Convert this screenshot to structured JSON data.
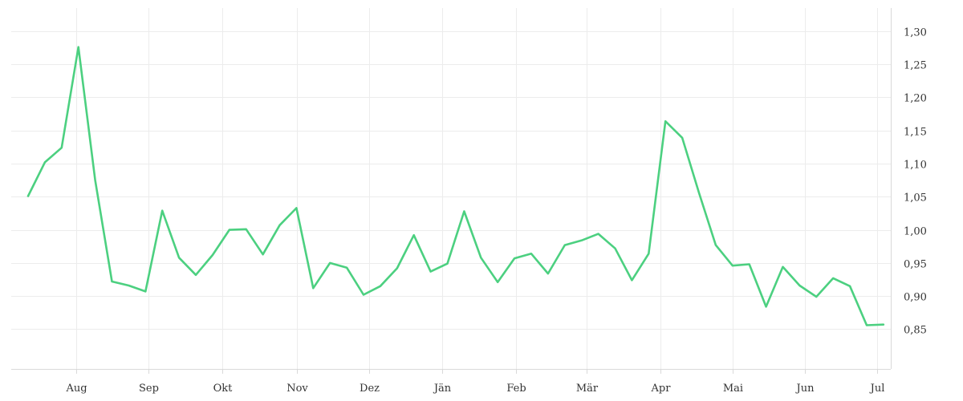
{
  "chart_data": {
    "type": "line",
    "title": "",
    "xlabel": "",
    "ylabel": "",
    "grid": true,
    "legend": "none",
    "line_color": "#4cd080",
    "ylim": [
      0.79,
      1.335
    ],
    "yticks": [
      {
        "value": 1.3,
        "label": "1,30"
      },
      {
        "value": 1.25,
        "label": "1,25"
      },
      {
        "value": 1.2,
        "label": "1,20"
      },
      {
        "value": 1.15,
        "label": "1,15"
      },
      {
        "value": 1.1,
        "label": "1,10"
      },
      {
        "value": 1.05,
        "label": "1,05"
      },
      {
        "value": 1.0,
        "label": "1,00"
      },
      {
        "value": 0.95,
        "label": "0,95"
      },
      {
        "value": 0.9,
        "label": "0,90"
      },
      {
        "value": 0.85,
        "label": "0,85"
      }
    ],
    "xticks": [
      {
        "label": "Aug",
        "index": 2.85
      },
      {
        "label": "Sep",
        "index": 7.2
      },
      {
        "label": "Okt",
        "index": 11.6
      },
      {
        "label": "Nov",
        "index": 16.05
      },
      {
        "label": "Dez",
        "index": 20.35
      },
      {
        "label": "Jän",
        "index": 24.7
      },
      {
        "label": "Feb",
        "index": 29.1
      },
      {
        "label": "Mär",
        "index": 33.3
      },
      {
        "label": "Apr",
        "index": 37.7
      },
      {
        "label": "Mai",
        "index": 42.0
      },
      {
        "label": "Jun",
        "index": 46.3
      },
      {
        "label": "Jul",
        "index": 50.6
      }
    ],
    "series": [
      {
        "values": [
          1.051,
          1.102,
          1.124,
          1.276,
          1.075,
          0.922,
          0.916,
          0.907,
          1.029,
          0.958,
          0.932,
          0.962,
          1.0,
          1.001,
          0.963,
          1.007,
          1.033,
          0.912,
          0.95,
          0.943,
          0.902,
          0.915,
          0.942,
          0.992,
          0.937,
          0.949,
          1.028,
          0.958,
          0.921,
          0.957,
          0.964,
          0.934,
          0.977,
          0.984,
          0.994,
          0.972,
          0.924,
          0.964,
          1.164,
          1.139,
          1.056,
          0.977,
          0.946,
          0.948,
          0.884,
          0.944,
          0.916,
          0.899,
          0.927,
          0.915,
          0.856,
          0.857
        ]
      }
    ]
  }
}
